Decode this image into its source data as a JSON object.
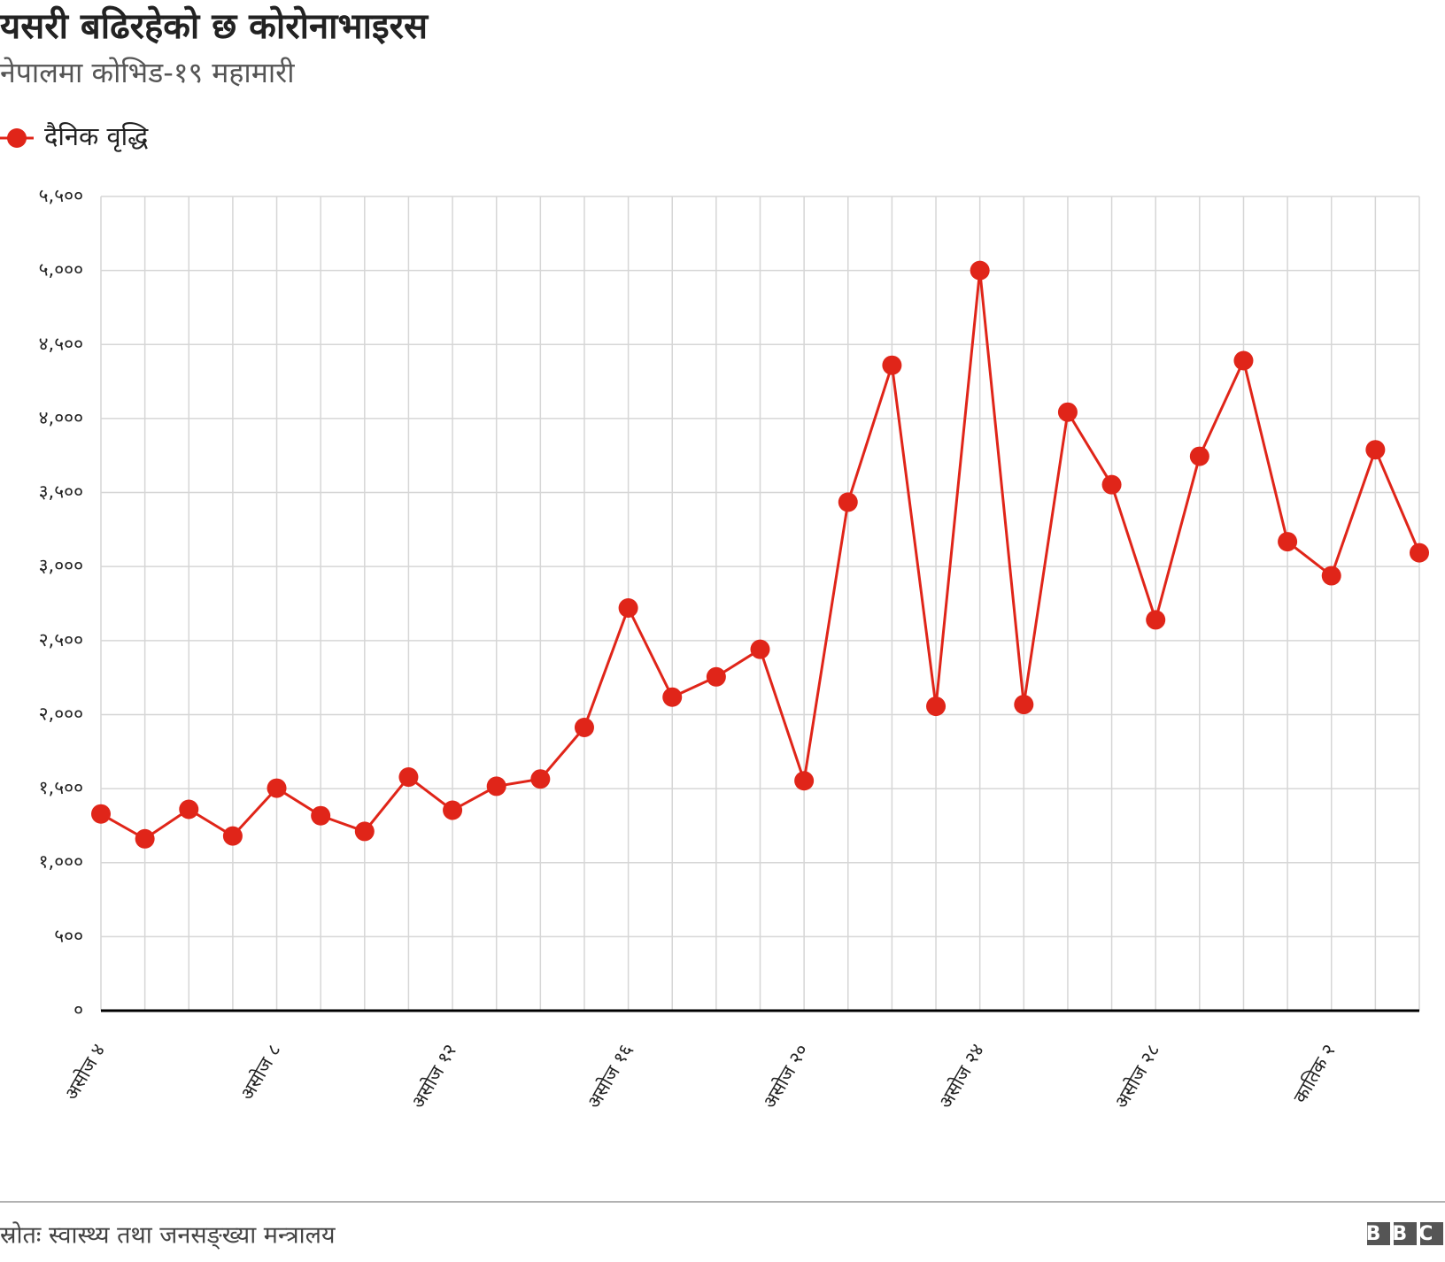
{
  "chart_data": {
    "type": "line",
    "title": "यसरी बढिरहेको छ कोरोनाभाइरस",
    "subtitle": "नेपालमा कोभिड-१९ महामारी",
    "source": "स्रोतः स्वास्थ्य तथा जनसङ्ख्या मन्त्रालय",
    "logo": "BBC",
    "categories": [
      "असोज ४",
      null,
      null,
      null,
      "असोज ८",
      null,
      null,
      null,
      "असोज १२",
      null,
      null,
      null,
      "असोज १६",
      null,
      null,
      null,
      "असोज २०",
      null,
      null,
      null,
      "असोज २४",
      null,
      null,
      null,
      "असोज २८",
      null,
      null,
      null,
      "कातिक २",
      null,
      null
    ],
    "series": [
      {
        "name": "दैनिक वृद्धि",
        "color": "#e02519",
        "values": [
          1329,
          1161,
          1360,
          1180,
          1503,
          1317,
          1211,
          1578,
          1354,
          1516,
          1565,
          1913,
          2720,
          2118,
          2255,
          2441,
          1553,
          3435,
          4360,
          2056,
          5000,
          2068,
          4043,
          3553,
          2640,
          3745,
          4391,
          3168,
          2938,
          3789,
          3093
        ]
      }
    ],
    "ylim": [
      0,
      5500
    ],
    "yticks": [
      {
        "value": 0,
        "label": "०"
      },
      {
        "value": 500,
        "label": "५००"
      },
      {
        "value": 1000,
        "label": "१,०००"
      },
      {
        "value": 1500,
        "label": "१,५००"
      },
      {
        "value": 2000,
        "label": "२,०००"
      },
      {
        "value": 2500,
        "label": "२,५००"
      },
      {
        "value": 3000,
        "label": "३,०००"
      },
      {
        "value": 3500,
        "label": "३,५००"
      },
      {
        "value": 4000,
        "label": "४,०००"
      },
      {
        "value": 4500,
        "label": "४,५००"
      },
      {
        "value": 5000,
        "label": "५,०००"
      },
      {
        "value": 5500,
        "label": "५,५००"
      }
    ],
    "grid": true,
    "legend": "top-left"
  }
}
